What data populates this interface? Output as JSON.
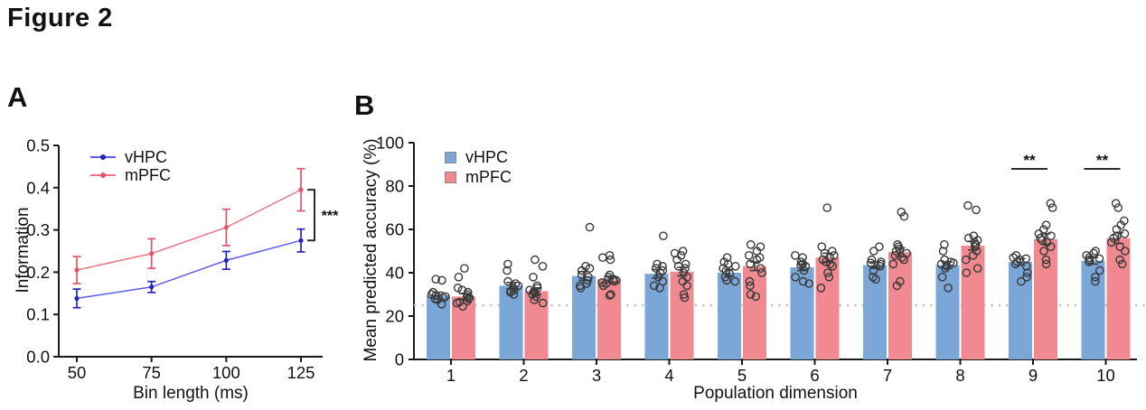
{
  "figure": {
    "title": "Figure 2",
    "panel_a_label": "A",
    "panel_b_label": "B"
  },
  "colors": {
    "vhpc_bar": "#7aa6d8",
    "mpfc_bar": "#f08a90",
    "vhpc_line": "#5d5dec",
    "vhpc_marker": "#2424bd",
    "mpfc_line": "#eb7382",
    "mpfc_marker": "#e15566",
    "axis": "#1a1a1a",
    "errorbar_b": "#3d3d3d",
    "scatter_stroke": "#3a3a3a",
    "chance_line": "#c5c5c5",
    "sig": "#2b2b2b"
  },
  "chart_data": [
    {
      "id": "panel_a",
      "type": "line",
      "xlabel": "Bin length (ms)",
      "ylabel": "Information",
      "x": [
        50,
        75,
        100,
        125
      ],
      "yticks": [
        0.0,
        0.1,
        0.2,
        0.3,
        0.4,
        0.5
      ],
      "ylim": [
        0,
        0.5
      ],
      "legend_position": "top-left-inside",
      "series": [
        {
          "name": "vHPC",
          "values": [
            0.138,
            0.165,
            0.228,
            0.275
          ],
          "errors": [
            0.022,
            0.013,
            0.021,
            0.027
          ]
        },
        {
          "name": "mPFC",
          "values": [
            0.205,
            0.244,
            0.306,
            0.395
          ],
          "errors": [
            0.032,
            0.035,
            0.043,
            0.05
          ]
        }
      ],
      "significance": {
        "label": "***",
        "at_x": 125,
        "between": [
          "mPFC",
          "vHPC"
        ]
      }
    },
    {
      "id": "panel_b",
      "type": "bar",
      "xlabel": "Population dimension",
      "ylabel": "Mean predicted accuracy (%)",
      "categories": [
        1,
        2,
        3,
        4,
        5,
        6,
        7,
        8,
        9,
        10
      ],
      "yticks": [
        0,
        20,
        40,
        60,
        80,
        100
      ],
      "ylim": [
        0,
        100
      ],
      "chance_level": 25,
      "legend_position": "top-left-inside",
      "series": [
        {
          "name": "vHPC",
          "means": [
            29.5,
            34,
            38.5,
            39.5,
            40,
            42.5,
            43.5,
            43.5,
            45,
            45.5
          ],
          "sems": [
            1.5,
            1.5,
            2,
            2,
            1.5,
            1.5,
            1.5,
            1.5,
            1.5,
            1.5
          ],
          "points": [
            [
              37,
              36.5,
              31,
              30,
              29.5,
              29,
              28.5,
              28,
              27.5,
              25.5
            ],
            [
              44,
              41,
              36,
              35,
              34,
              33,
              32,
              31.5,
              31,
              30
            ],
            [
              61,
              43,
              42,
              41,
              39,
              38,
              36.5,
              35,
              34,
              33
            ],
            [
              57,
              44,
              43,
              42,
              41,
              40,
              38,
              36,
              34,
              33
            ],
            [
              47,
              45,
              44,
              43,
              42,
              41,
              39.5,
              38,
              36.5,
              36
            ],
            [
              48,
              47,
              45,
              44,
              43.5,
              43,
              41,
              38,
              36,
              35
            ],
            [
              52,
              50,
              46,
              45,
              44.5,
              44,
              43,
              41,
              38,
              37
            ],
            [
              53,
              50,
              46,
              45,
              44.5,
              44,
              43,
              42,
              38,
              33
            ],
            [
              48,
              47,
              46.5,
              46,
              45,
              44,
              43,
              40,
              38,
              36
            ],
            [
              50,
              49,
              48,
              47,
              46.5,
              46,
              45,
              41,
              38,
              36
            ]
          ]
        },
        {
          "name": "mPFC",
          "means": [
            29,
            31.5,
            37,
            40.5,
            43,
            47,
            49.5,
            52.5,
            55.5,
            56
          ],
          "sems": [
            1.5,
            1.5,
            1.5,
            2,
            2,
            2,
            2,
            2,
            2.5,
            2.5
          ],
          "points": [
            [
              42,
              38,
              33,
              32,
              31,
              30,
              29,
              28.5,
              28,
              27,
              26.5,
              26,
              24.5
            ],
            [
              46,
              43,
              38,
              34,
              33,
              32,
              31.5,
              31,
              30.5,
              30,
              29,
              27.5,
              26
            ],
            [
              48,
              47,
              46,
              39,
              38,
              37,
              36.5,
              36,
              35.5,
              35,
              34,
              30,
              29.5
            ],
            [
              50,
              49,
              48,
              46,
              44,
              43,
              42,
              40,
              38,
              36,
              34,
              30,
              28.5
            ],
            [
              53,
              52,
              50,
              48,
              47,
              46,
              44,
              42,
              40,
              36,
              34,
              30,
              29
            ],
            [
              70,
              52,
              50,
              49,
              48,
              47,
              46,
              45,
              44,
              43,
              40,
              38,
              33
            ],
            [
              68,
              66,
              53,
              52,
              51,
              50,
              49,
              48,
              47,
              46,
              44,
              36,
              34
            ],
            [
              71,
              69,
              57,
              56,
              55,
              54,
              53,
              52,
              50,
              48,
              46,
              42,
              40
            ],
            [
              72,
              70,
              62,
              60,
              58,
              57,
              56,
              55,
              54,
              52,
              50,
              46,
              44
            ],
            [
              72,
              70,
              64,
              62,
              60,
              58,
              57,
              56,
              54,
              52,
              50,
              46,
              44
            ]
          ]
        }
      ],
      "significance": [
        {
          "category": 9,
          "label": "**"
        },
        {
          "category": 10,
          "label": "**"
        }
      ]
    }
  ]
}
